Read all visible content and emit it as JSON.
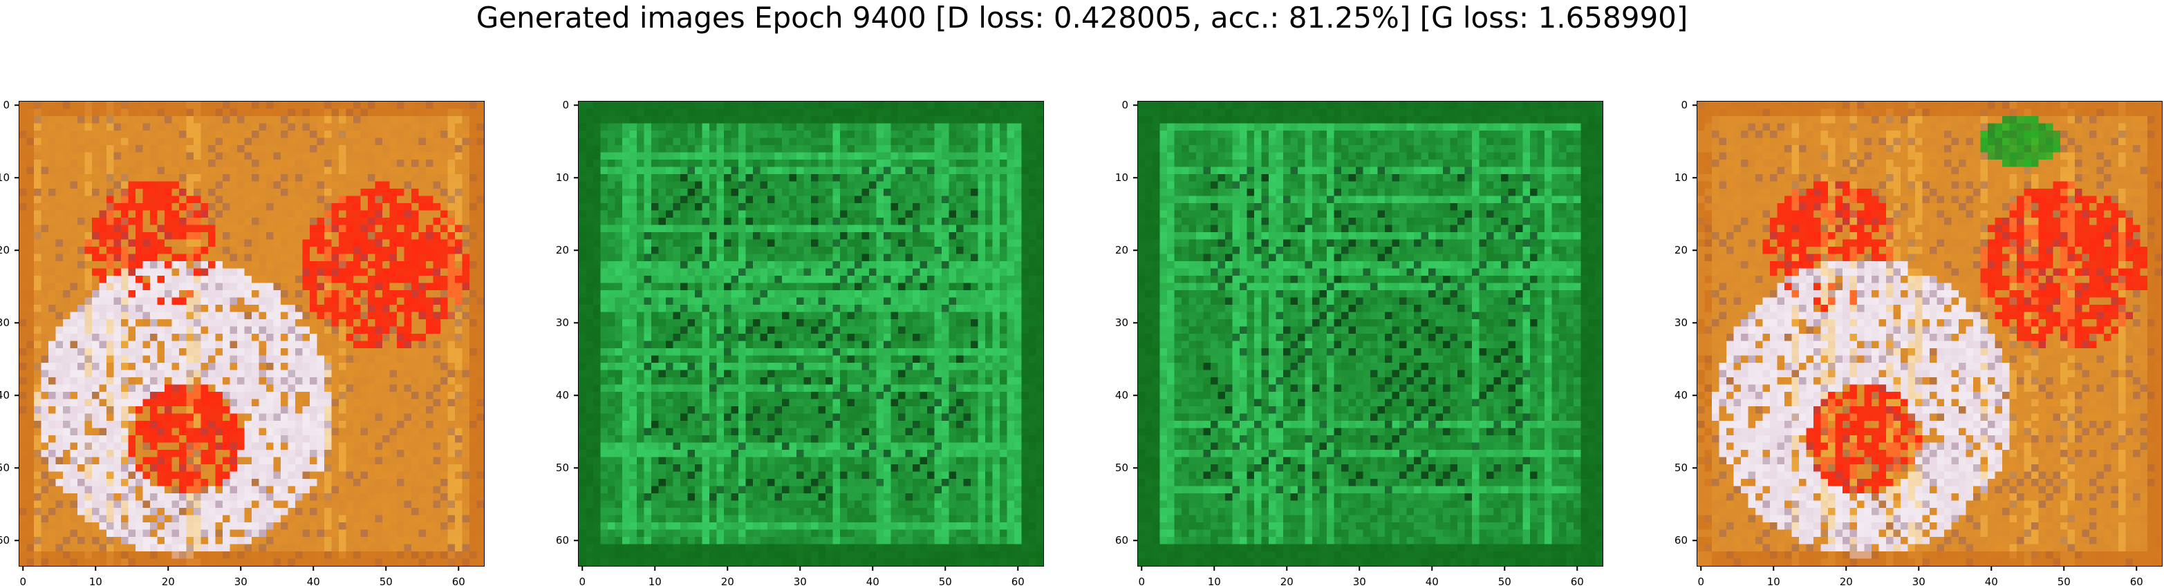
{
  "figure": {
    "title": "Generated images Epoch 9400 [D loss: 0.428005, acc.: 81.25%] [G loss: 1.658990]"
  },
  "panels": [
    {
      "id": "sample-1",
      "palette": "orange-red-white",
      "base": "#d98a2e",
      "accent": "#ff2a10",
      "light": "#e8d8e4"
    },
    {
      "id": "sample-2",
      "palette": "green",
      "base": "#137a1c",
      "accent": "#3fe070",
      "light": "#1fa83a"
    },
    {
      "id": "sample-3",
      "palette": "green",
      "base": "#137a1c",
      "accent": "#3fe070",
      "light": "#1fa83a"
    },
    {
      "id": "sample-4",
      "palette": "orange-red-white",
      "base": "#d98a2e",
      "accent": "#ff2a10",
      "light": "#e8d8e4"
    }
  ],
  "axes": {
    "ticks": [
      "0",
      "10",
      "20",
      "30",
      "40",
      "50",
      "60"
    ],
    "tick_values": [
      0,
      10,
      20,
      30,
      40,
      50,
      60
    ],
    "range": [
      0,
      64
    ]
  }
}
